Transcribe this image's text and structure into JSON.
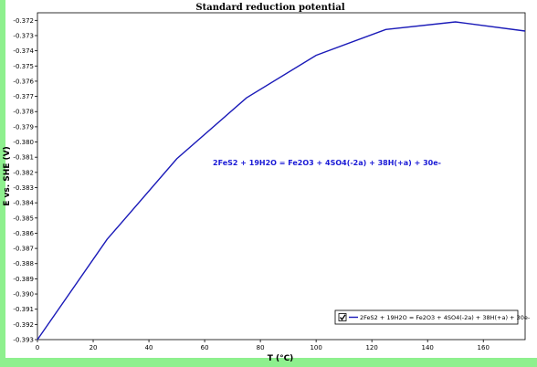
{
  "chart_data": {
    "type": "line",
    "title": "Standard reduction potential",
    "xlabel": "T (°C)",
    "ylabel": "E vs. SHE (V)",
    "xlim": [
      0,
      175
    ],
    "ylim": [
      -0.393,
      -0.3715
    ],
    "xticks": [
      0,
      20,
      40,
      60,
      80,
      100,
      120,
      140,
      160
    ],
    "xtick_labels": [
      "0",
      "20",
      "40",
      "60",
      "80",
      "100",
      "120",
      "140",
      "160"
    ],
    "yticks": [
      -0.372,
      -0.373,
      -0.374,
      -0.375,
      -0.376,
      -0.377,
      -0.378,
      -0.379,
      -0.38,
      -0.381,
      -0.382,
      -0.383,
      -0.384,
      -0.385,
      -0.386,
      -0.387,
      -0.388,
      -0.389,
      -0.39,
      -0.391,
      -0.392,
      -0.393
    ],
    "ytick_labels": [
      "-0.372",
      "-0.373",
      "-0.374",
      "-0.375",
      "-0.376",
      "-0.377",
      "-0.378",
      "-0.379",
      "-0.380",
      "-0.381",
      "-0.382",
      "-0.383",
      "-0.384",
      "-0.385",
      "-0.386",
      "-0.387",
      "-0.388",
      "-0.389",
      "-0.390",
      "-0.391",
      "-0.392",
      "-0.393"
    ],
    "grid": false,
    "legend_position": "bottom-right",
    "annotation": "2FeS2 + 19H2O = Fe2O3 + 4SO4(-2a) + 38H(+a) + 30e-",
    "series": [
      {
        "name": "2FeS2 + 19H2O = Fe2O3 + 4SO4(-2a) + 38H(+a) + 30e-",
        "color": "#1a1ab8",
        "x": [
          0,
          25,
          50,
          75,
          100,
          125,
          150,
          175
        ],
        "y": [
          -0.393,
          -0.3864,
          -0.3811,
          -0.3771,
          -0.3743,
          -0.3726,
          -0.3721,
          -0.3727
        ]
      }
    ]
  }
}
